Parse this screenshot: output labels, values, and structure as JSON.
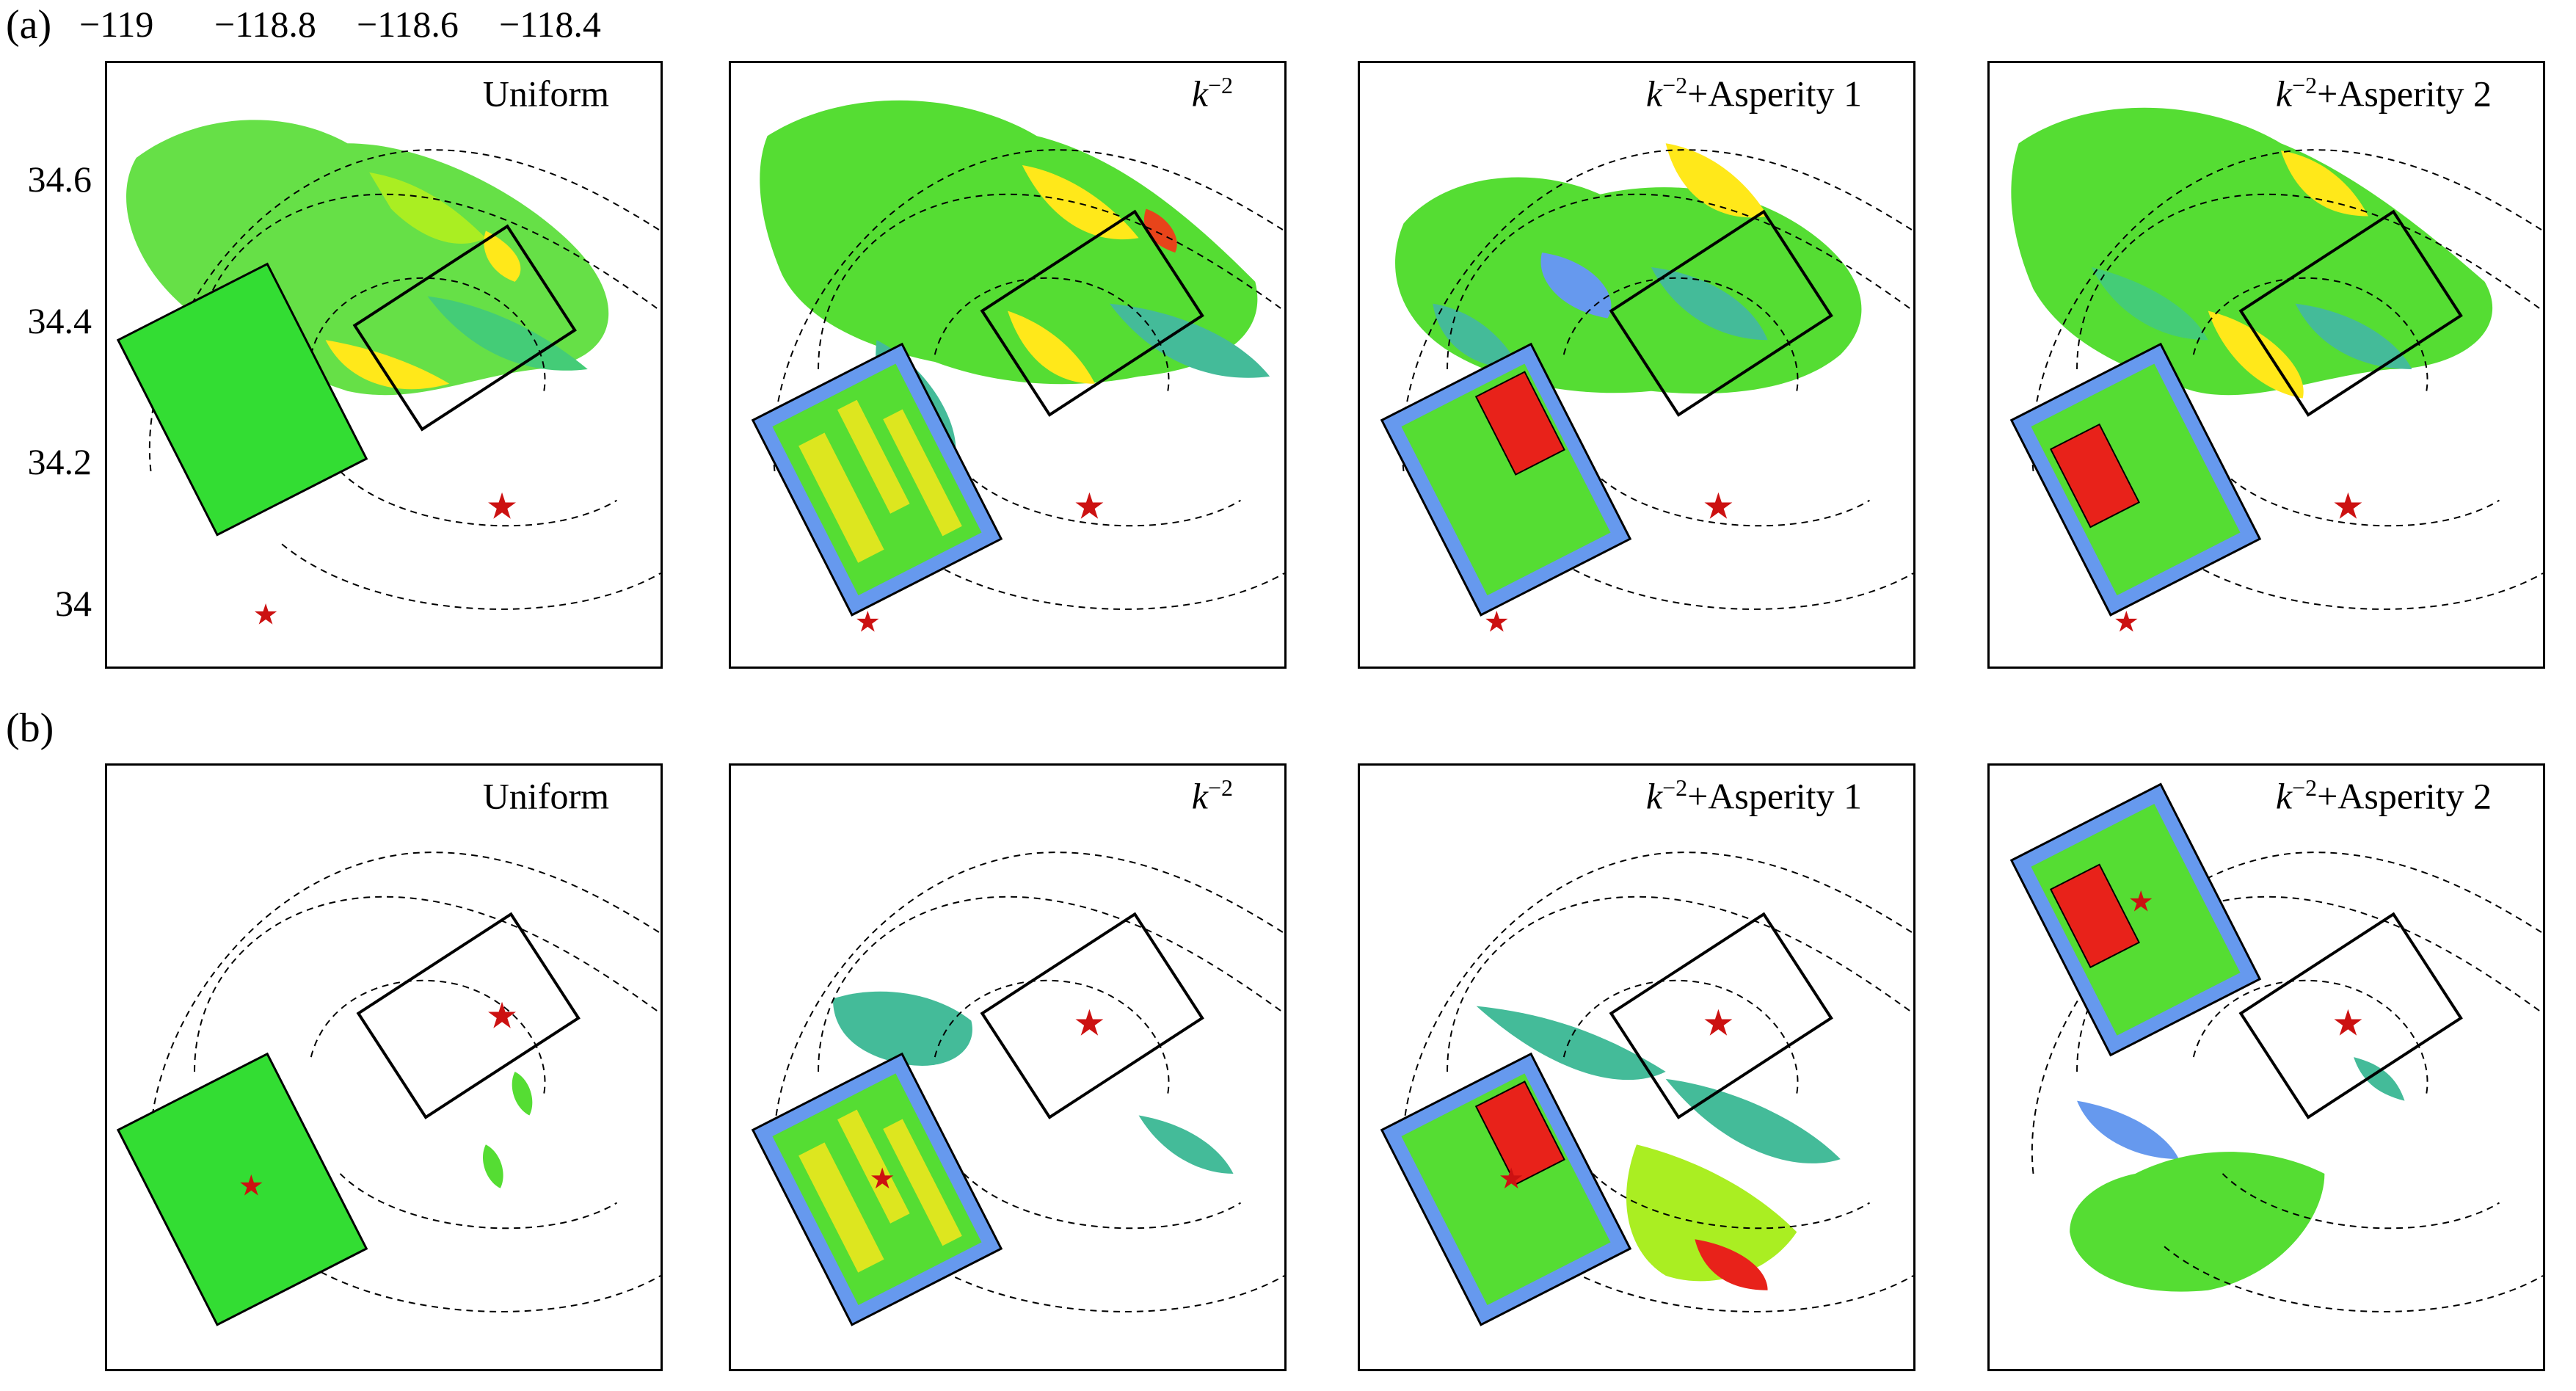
{
  "row_labels": {
    "a": "(a)",
    "b": "(b)"
  },
  "longitude_ticks": [
    "−119",
    "−118.8",
    "−118.6",
    "−118.4"
  ],
  "latitude_ticks": [
    "34.6",
    "34.4",
    "34.2",
    "34"
  ],
  "panel_titles": [
    {
      "pre": "",
      "exp": "",
      "text": "Uniform"
    },
    {
      "pre": "k",
      "exp": "−2",
      "text": ""
    },
    {
      "pre": "k",
      "exp": "−2",
      "text": "+Asperity 1"
    },
    {
      "pre": "k",
      "exp": "−2",
      "text": "+Asperity 2"
    }
  ],
  "colors": {
    "green": "#33dd33",
    "yellow_green": "#aaee22",
    "yellow": "#ffe81a",
    "orange": "#ff9a1a",
    "red": "#e8221a",
    "teal": "#44bb99",
    "blue": "#6699ee",
    "star": "#cc1111"
  }
}
